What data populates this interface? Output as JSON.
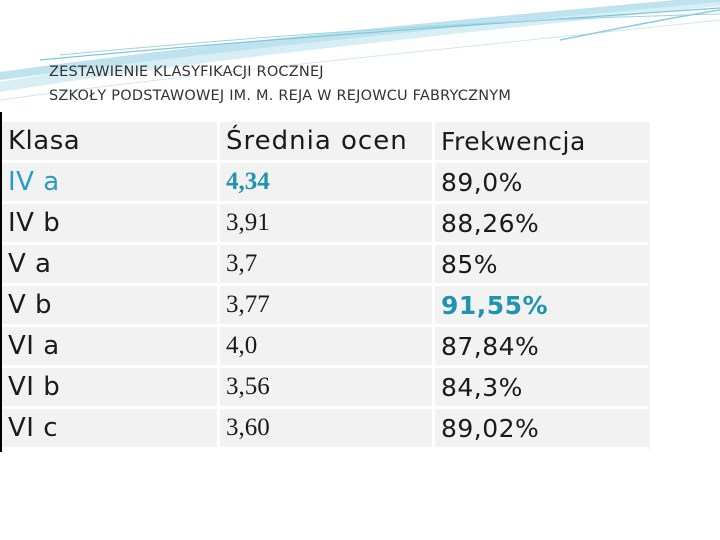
{
  "title": {
    "line1": "ZESTAWIENIE KLASYFIKACJI ROCZNEJ",
    "line2": "SZKOŁY PODSTAWOWEJ IM. M. REJA W REJOWCU FABRYCZNYM"
  },
  "table": {
    "headers": [
      "Klasa",
      "Średnia ocen",
      "Frekwencja"
    ],
    "rows": [
      {
        "klasa": "IV a",
        "srednia": "4,34",
        "frekwencja": "89,0%"
      },
      {
        "klasa": "IV b",
        "srednia": "3,91",
        "frekwencja": "88,26%"
      },
      {
        "klasa": "V a",
        "srednia": "3,7",
        "frekwencja": "85%"
      },
      {
        "klasa": "V b",
        "srednia": "3,77",
        "frekwencja": "91,55%"
      },
      {
        "klasa": "VI a",
        "srednia": "4,0",
        "frekwencja": "87,84%"
      },
      {
        "klasa": "VI b",
        "srednia": "3,56",
        "frekwencja": "84,3%"
      },
      {
        "klasa": "VI c",
        "srednia": "3,60",
        "frekwencja": "89,02%"
      }
    ],
    "highlight_color": "#2a9bc8"
  },
  "decoration": {
    "swoosh_colors": [
      "#bfe3ee",
      "#7fc6dc",
      "#d8eef5"
    ]
  }
}
